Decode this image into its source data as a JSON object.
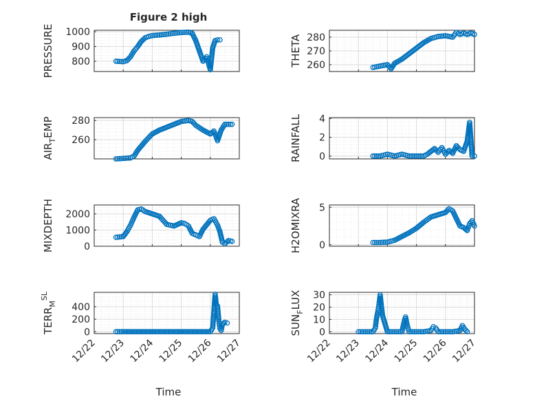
{
  "figure": {
    "title": "Figure 2 high",
    "xlabel": "Time",
    "xticks": [
      "12/22",
      "12/23",
      "12/24",
      "12/25",
      "12/26",
      "12/27"
    ]
  },
  "chart_data": [
    {
      "type": "scatter",
      "ylabel": "PRESSURE",
      "ylim": [
        730,
        1010
      ],
      "yticks": [
        800,
        900,
        1000
      ],
      "xlim": [
        "12/22",
        "12/27"
      ],
      "grid": true,
      "marker_color": "#0072bd",
      "points": [
        [
          "12/22 18:00",
          800
        ],
        [
          "12/23 00:00",
          797
        ],
        [
          "12/23 03:00",
          804
        ],
        [
          "12/23 06:00",
          830
        ],
        [
          "12/23 09:00",
          870
        ],
        [
          "12/23 12:00",
          900
        ],
        [
          "12/23 15:00",
          935
        ],
        [
          "12/23 18:00",
          958
        ],
        [
          "12/23 21:00",
          968
        ],
        [
          "12/24 00:00",
          974
        ],
        [
          "12/24 06:00",
          978
        ],
        [
          "12/24 12:00",
          983
        ],
        [
          "12/24 18:00",
          990
        ],
        [
          "12/25 00:00",
          995
        ],
        [
          "12/25 06:00",
          997
        ],
        [
          "12/25 09:00",
          990
        ],
        [
          "12/25 12:00",
          940
        ],
        [
          "12/25 15:00",
          870
        ],
        [
          "12/25 18:00",
          800
        ],
        [
          "12/25 21:00",
          830
        ],
        [
          "12/26 00:00",
          742
        ],
        [
          "12/26 02:00",
          890
        ],
        [
          "12/26 04:00",
          940
        ],
        [
          "12/26 06:00",
          945
        ],
        [
          "12/26 08:00",
          945
        ]
      ]
    },
    {
      "type": "scatter",
      "ylabel": "THETA",
      "ylim": [
        255,
        285
      ],
      "yticks": [
        260,
        270,
        280
      ],
      "xlim": [
        "12/22",
        "12/27"
      ],
      "grid": true,
      "marker_color": "#0072bd",
      "points": [
        [
          "12/23 12:00",
          258
        ],
        [
          "12/23 18:00",
          259
        ],
        [
          "12/24 00:00",
          260
        ],
        [
          "12/24 03:00",
          257
        ],
        [
          "12/24 06:00",
          261
        ],
        [
          "12/24 12:00",
          264
        ],
        [
          "12/24 18:00",
          268
        ],
        [
          "12/25 00:00",
          272
        ],
        [
          "12/25 06:00",
          276
        ],
        [
          "12/25 12:00",
          279
        ],
        [
          "12/25 18:00",
          280.5
        ],
        [
          "12/26 00:00",
          281
        ],
        [
          "12/26 06:00",
          280
        ],
        [
          "12/26 09:00",
          283.5
        ],
        [
          "12/26 12:00",
          282
        ],
        [
          "12/26 15:00",
          283
        ],
        [
          "12/26 18:00",
          282
        ],
        [
          "12/26 21:00",
          283
        ],
        [
          "12/27 00:00",
          282
        ]
      ]
    },
    {
      "type": "scatter",
      "ylabel": "AIR",
      "ylabel_sub": "T",
      "ylabel_tail": "EMP",
      "ylim": [
        240,
        283
      ],
      "yticks": [
        260,
        280
      ],
      "xlim": [
        "12/22",
        "12/27"
      ],
      "grid": true,
      "marker_color": "#0072bd",
      "points": [
        [
          "12/22 18:00",
          240
        ],
        [
          "12/23 00:00",
          240.5
        ],
        [
          "12/23 06:00",
          241
        ],
        [
          "12/23 09:00",
          243
        ],
        [
          "12/23 12:00",
          249
        ],
        [
          "12/23 18:00",
          258
        ],
        [
          "12/24 00:00",
          266
        ],
        [
          "12/24 06:00",
          270
        ],
        [
          "12/24 12:00",
          273
        ],
        [
          "12/24 18:00",
          276
        ],
        [
          "12/25 00:00",
          279
        ],
        [
          "12/25 06:00",
          280
        ],
        [
          "12/25 09:00",
          279
        ],
        [
          "12/25 12:00",
          275
        ],
        [
          "12/25 18:00",
          270
        ],
        [
          "12/26 00:00",
          266
        ],
        [
          "12/26 03:00",
          269
        ],
        [
          "12/26 06:00",
          259
        ],
        [
          "12/26 09:00",
          270
        ],
        [
          "12/26 12:00",
          276
        ],
        [
          "12/26 18:00",
          276
        ]
      ]
    },
    {
      "type": "scatter",
      "ylabel": "RAINFALL",
      "ylim": [
        -0.3,
        4.1
      ],
      "yticks": [
        0,
        2,
        4
      ],
      "xlim": [
        "12/22",
        "12/27"
      ],
      "grid": true,
      "marker_color": "#0072bd",
      "points": [
        [
          "12/23 12:00",
          0
        ],
        [
          "12/23 18:00",
          0
        ],
        [
          "12/24 00:00",
          0.2
        ],
        [
          "12/24 06:00",
          0
        ],
        [
          "12/24 12:00",
          0.2
        ],
        [
          "12/24 18:00",
          0
        ],
        [
          "12/25 00:00",
          0
        ],
        [
          "12/25 06:00",
          0
        ],
        [
          "12/25 09:00",
          0.2
        ],
        [
          "12/25 12:00",
          0.5
        ],
        [
          "12/25 15:00",
          0.8
        ],
        [
          "12/25 18:00",
          0.4
        ],
        [
          "12/25 21:00",
          0.9
        ],
        [
          "12/26 00:00",
          0.2
        ],
        [
          "12/26 03:00",
          0.6
        ],
        [
          "12/26 06:00",
          0.3
        ],
        [
          "12/26 09:00",
          1.1
        ],
        [
          "12/26 12:00",
          0.7
        ],
        [
          "12/26 15:00",
          0.5
        ],
        [
          "12/26 18:00",
          1.6
        ],
        [
          "12/26 20:00",
          3.6
        ],
        [
          "12/26 22:00",
          0
        ],
        [
          "12/27 00:00",
          0
        ]
      ]
    },
    {
      "type": "scatter",
      "ylabel": "MIXDEPTH",
      "ylim": [
        0,
        2550
      ],
      "yticks": [
        0,
        1000,
        2000
      ],
      "xlim": [
        "12/22",
        "12/27"
      ],
      "grid": true,
      "marker_color": "#0072bd",
      "points": [
        [
          "12/22 18:00",
          550
        ],
        [
          "12/23 00:00",
          600
        ],
        [
          "12/23 03:00",
          900
        ],
        [
          "12/23 06:00",
          1300
        ],
        [
          "12/23 09:00",
          1800
        ],
        [
          "12/23 12:00",
          2250
        ],
        [
          "12/23 15:00",
          2300
        ],
        [
          "12/23 18:00",
          2150
        ],
        [
          "12/24 00:00",
          2000
        ],
        [
          "12/24 06:00",
          1850
        ],
        [
          "12/24 09:00",
          1600
        ],
        [
          "12/24 12:00",
          1350
        ],
        [
          "12/24 18:00",
          1250
        ],
        [
          "12/25 00:00",
          1450
        ],
        [
          "12/25 03:00",
          1400
        ],
        [
          "12/25 06:00",
          1250
        ],
        [
          "12/25 09:00",
          800
        ],
        [
          "12/25 12:00",
          700
        ],
        [
          "12/25 15:00",
          600
        ],
        [
          "12/25 18:00",
          1050
        ],
        [
          "12/26 00:00",
          1600
        ],
        [
          "12/26 03:00",
          1700
        ],
        [
          "12/26 06:00",
          1300
        ],
        [
          "12/26 08:00",
          900
        ],
        [
          "12/26 10:00",
          250
        ],
        [
          "12/26 12:00",
          150
        ],
        [
          "12/26 15:00",
          350
        ],
        [
          "12/26 18:00",
          300
        ]
      ]
    },
    {
      "type": "scatter",
      "ylabel": "H2OMIXRA",
      "ylim": [
        -0.2,
        5.3
      ],
      "yticks": [
        0,
        5
      ],
      "xlim": [
        "12/22",
        "12/27"
      ],
      "grid": true,
      "marker_color": "#0072bd",
      "points": [
        [
          "12/23 12:00",
          0.3
        ],
        [
          "12/23 18:00",
          0.3
        ],
        [
          "12/24 00:00",
          0.35
        ],
        [
          "12/24 06:00",
          0.6
        ],
        [
          "12/24 12:00",
          1.1
        ],
        [
          "12/24 18:00",
          1.6
        ],
        [
          "12/25 00:00",
          2.2
        ],
        [
          "12/25 06:00",
          3.0
        ],
        [
          "12/25 12:00",
          3.7
        ],
        [
          "12/25 18:00",
          4.0
        ],
        [
          "12/26 00:00",
          4.3
        ],
        [
          "12/26 03:00",
          4.8
        ],
        [
          "12/26 06:00",
          4.5
        ],
        [
          "12/26 09:00",
          3.5
        ],
        [
          "12/26 12:00",
          2.5
        ],
        [
          "12/26 15:00",
          2.3
        ],
        [
          "12/26 18:00",
          1.9
        ],
        [
          "12/26 20:00",
          2.8
        ],
        [
          "12/26 22:00",
          3.2
        ],
        [
          "12/27 00:00",
          2.5
        ]
      ]
    },
    {
      "type": "scatter",
      "ylabel": "TERR",
      "ylabel_sub": "M",
      "ylabel_sup": "SL",
      "ylim": [
        -30,
        630
      ],
      "yticks": [
        0,
        200,
        400
      ],
      "xlim": [
        "12/22",
        "12/27"
      ],
      "grid": true,
      "marker_color": "#0072bd",
      "points": [
        [
          "12/22 18:00",
          0
        ],
        [
          "12/23 00:00",
          0
        ],
        [
          "12/23 12:00",
          0
        ],
        [
          "12/24 00:00",
          0
        ],
        [
          "12/24 12:00",
          0
        ],
        [
          "12/25 00:00",
          0
        ],
        [
          "12/25 12:00",
          0
        ],
        [
          "12/26 00:00",
          0
        ],
        [
          "12/26 02:00",
          60
        ],
        [
          "12/26 04:00",
          600
        ],
        [
          "12/26 05:00",
          430
        ],
        [
          "12/26 06:00",
          410
        ],
        [
          "12/26 07:00",
          190
        ],
        [
          "12/26 08:00",
          50
        ],
        [
          "12/26 09:00",
          20
        ],
        [
          "12/26 10:00",
          120
        ],
        [
          "12/26 12:00",
          150
        ],
        [
          "12/26 14:00",
          140
        ]
      ]
    },
    {
      "type": "scatter",
      "ylabel": "SUN",
      "ylabel_sub": "F",
      "ylabel_tail": "LUX",
      "ylim": [
        -1.5,
        32
      ],
      "yticks": [
        0,
        10,
        20,
        30
      ],
      "xlim": [
        "12/22",
        "12/27"
      ],
      "grid": true,
      "marker_color": "#0072bd",
      "points": [
        [
          "12/23 00:00",
          0
        ],
        [
          "12/23 06:00",
          0
        ],
        [
          "12/23 12:00",
          0
        ],
        [
          "12/23 14:00",
          3
        ],
        [
          "12/23 15:00",
          11
        ],
        [
          "12/23 16:00",
          16
        ],
        [
          "12/23 17:00",
          22
        ],
        [
          "12/23 18:00",
          30
        ],
        [
          "12/23 19:00",
          21
        ],
        [
          "12/23 20:00",
          13
        ],
        [
          "12/24 00:00",
          0
        ],
        [
          "12/24 06:00",
          0
        ],
        [
          "12/24 12:00",
          0
        ],
        [
          "12/24 14:00",
          9
        ],
        [
          "12/24 15:00",
          12
        ],
        [
          "12/24 16:00",
          7
        ],
        [
          "12/24 17:00",
          3
        ],
        [
          "12/24 18:00",
          0
        ],
        [
          "12/25 00:00",
          0
        ],
        [
          "12/25 06:00",
          0
        ],
        [
          "12/25 12:00",
          1
        ],
        [
          "12/25 14:00",
          4
        ],
        [
          "12/25 16:00",
          3
        ],
        [
          "12/25 18:00",
          0
        ],
        [
          "12/26 00:00",
          0
        ],
        [
          "12/26 06:00",
          0
        ],
        [
          "12/26 12:00",
          1
        ],
        [
          "12/26 14:00",
          5
        ],
        [
          "12/26 16:00",
          2
        ],
        [
          "12/26 18:00",
          0
        ]
      ]
    }
  ]
}
